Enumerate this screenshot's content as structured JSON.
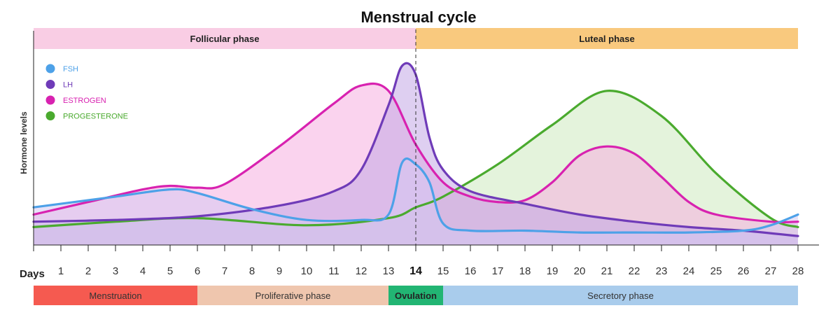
{
  "chart_data": {
    "type": "area",
    "title": "Menstrual cycle",
    "xlabel": "Days",
    "ylabel": "Hormone levels",
    "x": [
      1,
      2,
      3,
      4,
      5,
      6,
      7,
      8,
      9,
      10,
      11,
      12,
      13,
      14,
      15,
      16,
      17,
      18,
      19,
      20,
      21,
      22,
      23,
      24,
      25,
      26,
      27,
      28
    ],
    "xlim": [
      0,
      28
    ],
    "ylim": [
      0,
      100
    ],
    "highlight_tick": 14,
    "ovulation_line_x": 14,
    "phases": [
      {
        "label": "Follicular phase",
        "start": 0,
        "end": 14,
        "color": "#f9cde4"
      },
      {
        "label": "Luteal phase",
        "start": 14,
        "end": 28,
        "color": "#f9c97e"
      }
    ],
    "bands": [
      {
        "label": "Menstruation",
        "start": 0,
        "end": 6,
        "color": "#f55a50",
        "bold": false
      },
      {
        "label": "Proliferative phase",
        "start": 6,
        "end": 13,
        "color": "#efc6ae",
        "bold": false
      },
      {
        "label": "Ovulation",
        "start": 13,
        "end": 15,
        "color": "#22b573",
        "bold": true
      },
      {
        "label": "Secretory phase",
        "start": 15,
        "end": 28,
        "color": "#a9ccec",
        "bold": false
      }
    ],
    "legend_position": "top-left",
    "series": [
      {
        "name": "PROGESTERONE",
        "color": "#4aaa2e",
        "fill": "#cdeac0",
        "x": [
          0,
          3,
          6,
          10,
          13,
          14,
          15,
          17,
          19,
          21,
          23,
          25,
          27,
          28
        ],
        "y": [
          10,
          13,
          15,
          11,
          15,
          21,
          27,
          45,
          67,
          86,
          72,
          40,
          15,
          10
        ]
      },
      {
        "name": "ESTROGEN",
        "color": "#d822b0",
        "fill": "#f5aee0",
        "x": [
          0,
          2,
          4,
          5,
          6,
          7,
          9,
          11,
          12,
          13,
          14,
          15,
          16,
          17,
          18,
          19,
          20,
          21,
          22,
          23,
          24,
          25,
          27,
          28
        ],
        "y": [
          17,
          24,
          31,
          33,
          32,
          34,
          55,
          79,
          89,
          86,
          56,
          35,
          27,
          24,
          25,
          35,
          50,
          55,
          51,
          38,
          24,
          17,
          13,
          13
        ]
      },
      {
        "name": "LH",
        "color": "#6f3bb8",
        "fill": "#c3a7e6",
        "x": [
          0,
          3,
          6,
          9,
          11,
          12,
          13,
          13.5,
          14,
          14.5,
          15,
          16,
          18,
          20,
          22,
          24,
          26,
          28
        ],
        "y": [
          13,
          14,
          16,
          22,
          30,
          42,
          78,
          100,
          95,
          60,
          42,
          30,
          23,
          17,
          13,
          10,
          8,
          5
        ],
        "flat_end": true
      },
      {
        "name": "FSH",
        "color": "#4da1e8",
        "fill": "#d5c8f2",
        "x": [
          0,
          3,
          5,
          6,
          8,
          10,
          12,
          13,
          13.5,
          14,
          14.5,
          15,
          16,
          18,
          20,
          22,
          24,
          26,
          27,
          28
        ],
        "y": [
          21,
          27,
          31,
          29,
          20,
          14,
          14,
          17,
          46,
          45,
          35,
          12,
          8,
          8,
          7,
          7,
          7,
          8,
          11,
          17
        ],
        "flat_end": true
      }
    ]
  }
}
